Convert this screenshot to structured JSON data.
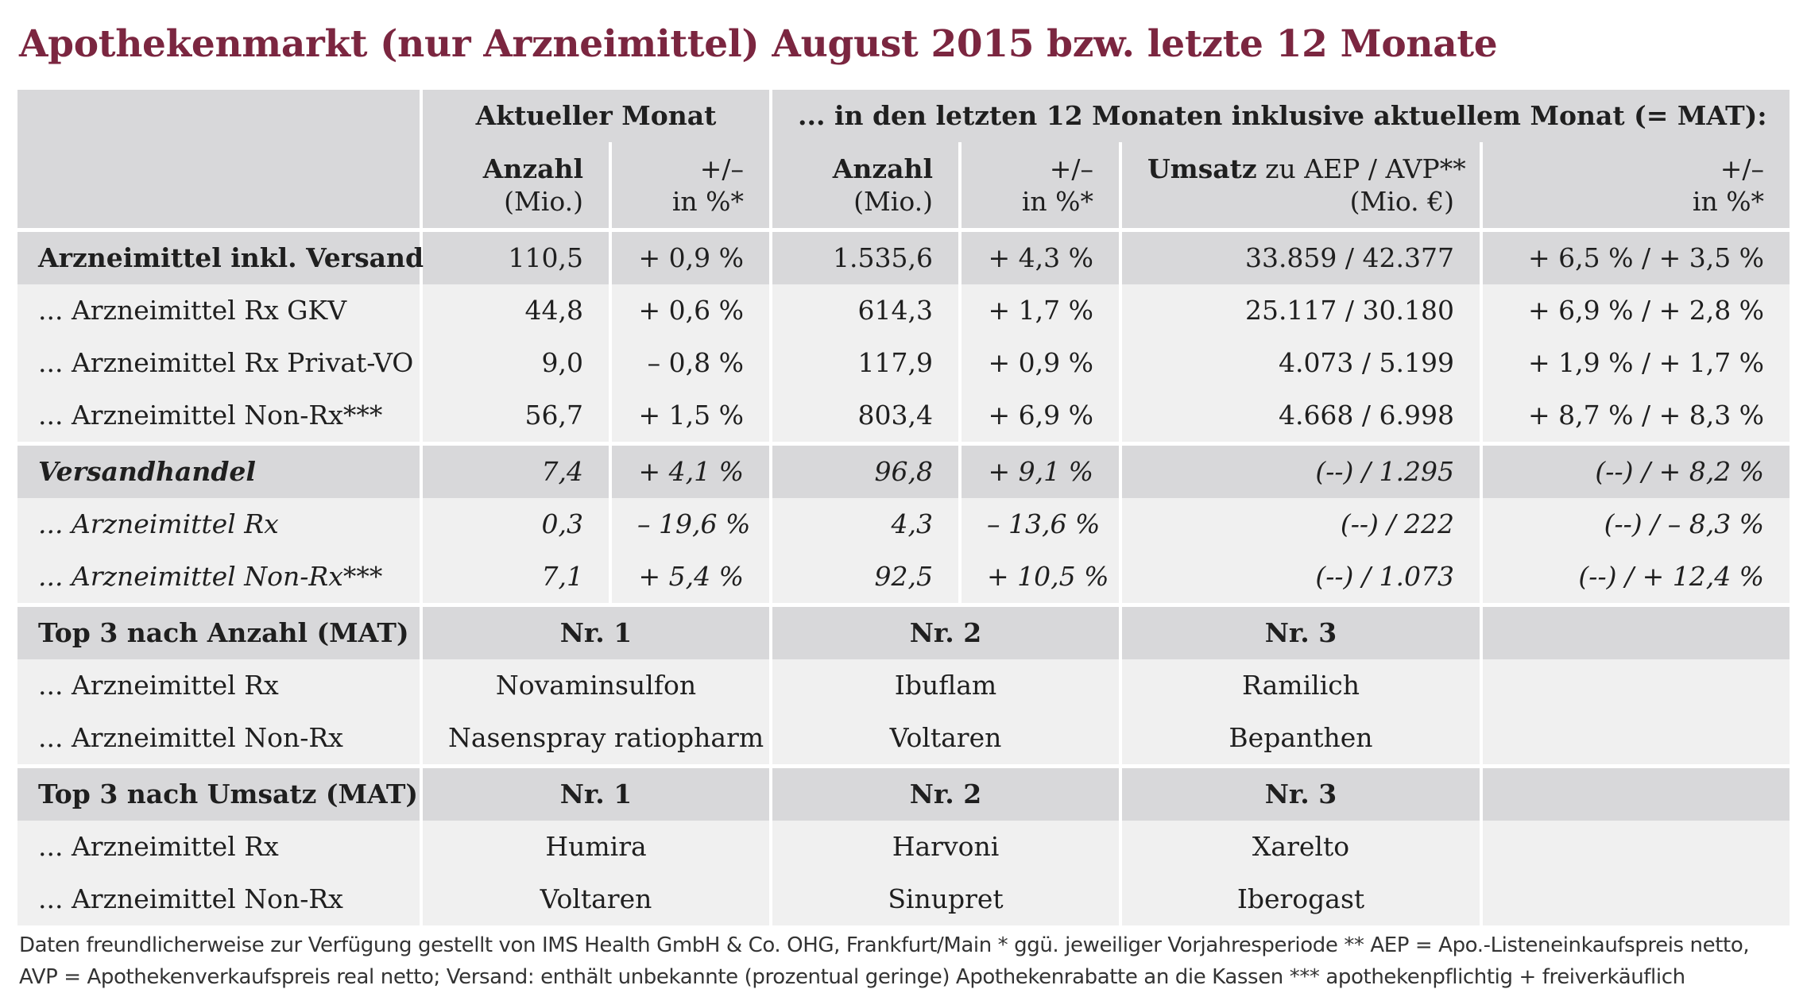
{
  "title": "Apothekenmarkt (nur Arzneimittel) August 2015 bzw. letzte 12 Monate",
  "header": {
    "current_month": "Aktueller Monat",
    "mat": "... in den letzten 12 Monaten inklusive aktuellem Monat (= MAT):",
    "col_anzahl": "Anzahl",
    "col_anzahl_unit": "(Mio.)",
    "col_pm": "+/–",
    "col_pm_unit": "in %*",
    "col_umsatz_bold": "Umsatz",
    "col_umsatz_rest": " zu AEP / AVP**",
    "col_umsatz_unit": "(Mio. €)"
  },
  "rows": [
    {
      "label": "Arzneimittel inkl. Versand",
      "a1": "110,5",
      "p1": "+ 0,9 %",
      "a2": "1.535,6",
      "p2": "+ 4,3 %",
      "u": "33.859 / 42.377",
      "p3": "+ 6,5 % / + 3,5 %"
    },
    {
      "label": "... Arzneimittel Rx GKV",
      "a1": "44,8",
      "p1": "+ 0,6 %",
      "a2": "614,3",
      "p2": "+ 1,7 %",
      "u": "25.117 / 30.180",
      "p3": "+ 6,9 % / + 2,8 %"
    },
    {
      "label": "... Arzneimittel Rx Privat-VO",
      "a1": "9,0",
      "p1": "– 0,8 %",
      "a2": "117,9",
      "p2": "+ 0,9 %",
      "u": "4.073 / 5.199",
      "p3": "+ 1,9 % / + 1,7 %"
    },
    {
      "label": "... Arzneimittel Non-Rx***",
      "a1": "56,7",
      "p1": "+ 1,5 %",
      "a2": "803,4",
      "p2": "+ 6,9 %",
      "u": "4.668 / 6.998",
      "p3": "+ 8,7 % / + 8,3 %"
    },
    {
      "label": "Versandhandel",
      "a1": "7,4",
      "p1": "+ 4,1 %",
      "a2": "96,8",
      "p2": "+ 9,1 %",
      "u": "(--) / 1.295",
      "p3": "(--) / + 8,2 %"
    },
    {
      "label": "... Arzneimittel Rx",
      "a1": "0,3",
      "p1": "– 19,6 %",
      "a2": "4,3",
      "p2": "– 13,6 %",
      "u": "(--) / 222",
      "p3": "(--) / – 8,3 %"
    },
    {
      "label": "... Arzneimittel Non-Rx***",
      "a1": "7,1",
      "p1": "+ 5,4 %",
      "a2": "92,5",
      "p2": "+ 10,5 %",
      "u": "(--) / 1.073",
      "p3": "(--) / + 12,4 %"
    }
  ],
  "top_anzahl": {
    "label": "Top 3 nach Anzahl (MAT)",
    "n1": "Nr. 1",
    "n2": "Nr. 2",
    "n3": "Nr. 3",
    "rows": [
      {
        "label": "... Arzneimittel Rx",
        "v1": "Novaminsulfon",
        "v2": "Ibuflam",
        "v3": "Ramilich"
      },
      {
        "label": "... Arzneimittel Non-Rx",
        "v1": "Nasenspray ratiopharm",
        "v2": "Voltaren",
        "v3": "Bepanthen"
      }
    ]
  },
  "top_umsatz": {
    "label": "Top 3 nach Umsatz (MAT)",
    "n1": "Nr. 1",
    "n2": "Nr. 2",
    "n3": "Nr. 3",
    "rows": [
      {
        "label": "... Arzneimittel Rx",
        "v1": "Humira",
        "v2": "Harvoni",
        "v3": "Xarelto"
      },
      {
        "label": "... Arzneimittel Non-Rx",
        "v1": "Voltaren",
        "v2": "Sinupret",
        "v3": "Iberogast"
      }
    ]
  },
  "footnote": {
    "line1": "Daten freundlicherweise zur Verfügung gestellt von IMS Health GmbH & Co. OHG, Frankfurt/Main   * ggü. jeweiliger Vorjahresperiode   ** AEP = Apo.-Listeneinkaufspreis netto,",
    "line2": "AVP = Apothekenverkaufspreis real netto; Versand: enthält unbekannte (prozentual geringe) Apothekenrabatte an die Kassen   *** apothekenpflichtig + freiverkäuflich"
  },
  "colors": {
    "title": "#7b2640",
    "header_bg": "#d8d8da",
    "row_bg": "#f0f0f0"
  }
}
